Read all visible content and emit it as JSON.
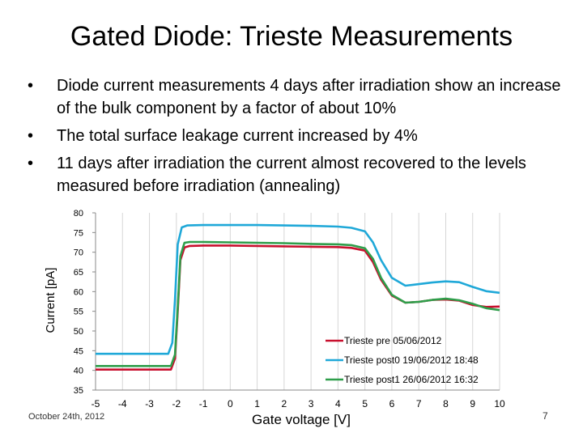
{
  "slide": {
    "title": "Gated Diode: Trieste Measurements",
    "bullets": [
      "Diode current measurements 4 days after irradiation show an increase of the bulk component by a factor of about 10%",
      "The total surface leakage current increased by 4%",
      "11 days after irradiation the current almost recovered to the levels measured before irradiation (annealing)"
    ],
    "footer_date": "October 24th, 2012",
    "page_number": "7"
  },
  "chart_data": {
    "type": "line",
    "title": "",
    "xlabel": "Gate voltage [V]",
    "ylabel": "Current [pA]",
    "xlim": [
      -5,
      10
    ],
    "ylim": [
      35,
      80
    ],
    "x_ticks": [
      "-5",
      "-4",
      "-3",
      "-2",
      "-1",
      "0",
      "1",
      "2",
      "3",
      "4",
      "5",
      "6",
      "7",
      "8",
      "9",
      "10"
    ],
    "y_ticks": [
      "35",
      "40",
      "45",
      "50",
      "55",
      "60",
      "65",
      "70",
      "75",
      "80"
    ],
    "grid": "vertical",
    "legend_position": "lower-right",
    "series": [
      {
        "name": "Trieste pre 05/06/2012",
        "color": "#c8102e",
        "x": [
          -5,
          -2.2,
          -2.05,
          -1.95,
          -1.85,
          -1.7,
          -1.5,
          -1,
          0,
          1,
          2,
          3,
          4,
          4.5,
          5.0,
          5.3,
          5.6,
          6.0,
          6.5,
          7.0,
          7.5,
          8.0,
          8.5,
          9.0,
          9.5,
          10.0
        ],
        "y": [
          40.2,
          40.2,
          43,
          55,
          68,
          71.2,
          71.6,
          71.7,
          71.7,
          71.6,
          71.5,
          71.4,
          71.3,
          71.1,
          70.4,
          67.5,
          63,
          59,
          57.2,
          57.4,
          57.9,
          58.0,
          57.7,
          56.6,
          56.1,
          56.2
        ]
      },
      {
        "name": "Trieste post0 19/06/2012 18:48",
        "color": "#1fa8d8",
        "x": [
          -5,
          -2.3,
          -2.15,
          -2.05,
          -1.95,
          -1.8,
          -1.6,
          -1,
          0,
          1,
          2,
          3,
          4,
          4.5,
          5.0,
          5.3,
          5.6,
          6.0,
          6.5,
          7.0,
          7.5,
          8.0,
          8.5,
          9.0,
          9.5,
          10.0
        ],
        "y": [
          44.2,
          44.2,
          47,
          58,
          72,
          76.3,
          76.8,
          76.9,
          76.9,
          76.9,
          76.8,
          76.7,
          76.5,
          76.2,
          75.3,
          72.5,
          68,
          63.5,
          61.5,
          61.9,
          62.3,
          62.6,
          62.4,
          61.2,
          60.1,
          59.7
        ]
      },
      {
        "name": "Trieste post1 26/06/2012 16:32",
        "color": "#2e9e4a",
        "x": [
          -5,
          -2.2,
          -2.05,
          -1.95,
          -1.85,
          -1.7,
          -1.5,
          -1,
          0,
          1,
          2,
          3,
          4,
          4.5,
          5.0,
          5.3,
          5.6,
          6.0,
          6.5,
          7.0,
          7.5,
          8.0,
          8.5,
          9.0,
          9.5,
          10.0
        ],
        "y": [
          41.1,
          41.1,
          44,
          56,
          69,
          72.4,
          72.6,
          72.6,
          72.5,
          72.4,
          72.3,
          72.1,
          72.0,
          71.8,
          71.0,
          68.3,
          63.5,
          59.2,
          57.2,
          57.4,
          57.9,
          58.2,
          57.8,
          56.9,
          55.8,
          55.3
        ]
      }
    ]
  }
}
